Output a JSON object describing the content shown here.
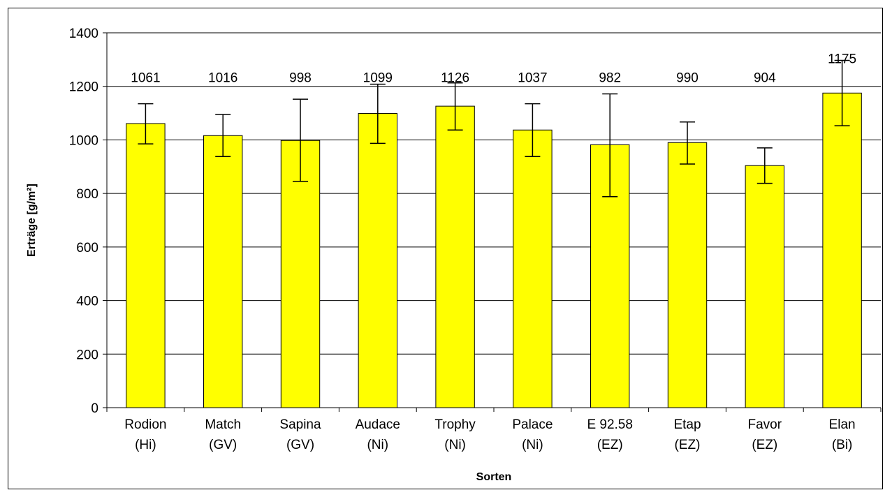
{
  "chart_data": {
    "type": "bar",
    "title": "",
    "xlabel": "Sorten",
    "ylabel": "Erträge [g/m²]",
    "ylim": [
      0,
      1400
    ],
    "yticks": [
      0,
      200,
      400,
      600,
      800,
      1000,
      1200,
      1400
    ],
    "grid": true,
    "legend": "none",
    "bar_color": "#FFFF00",
    "categories": [
      [
        "Rodion",
        "(Hi)"
      ],
      [
        "Match",
        "(GV)"
      ],
      [
        "Sapina",
        "(GV)"
      ],
      [
        "Audace",
        "(Ni)"
      ],
      [
        "Trophy",
        "(Ni)"
      ],
      [
        "Palace",
        "(Ni)"
      ],
      [
        "E 92.58",
        "(EZ)"
      ],
      [
        "Etap",
        "(EZ)"
      ],
      [
        "Favor",
        "(EZ)"
      ],
      [
        "Elan",
        "(Bi)"
      ]
    ],
    "values": [
      1061,
      1016,
      998,
      1099,
      1126,
      1037,
      982,
      990,
      904,
      1175
    ],
    "data_labels": [
      "1061",
      "1016",
      "998",
      "1099",
      "1126",
      "1037",
      "982",
      "990",
      "904",
      "1175"
    ],
    "error_bars": [
      [
        985,
        1135
      ],
      [
        938,
        1095
      ],
      [
        845,
        1152
      ],
      [
        987,
        1208
      ],
      [
        1037,
        1213
      ],
      [
        938,
        1135
      ],
      [
        788,
        1172
      ],
      [
        910,
        1067
      ],
      [
        838,
        970
      ],
      [
        1053,
        1297
      ]
    ]
  }
}
